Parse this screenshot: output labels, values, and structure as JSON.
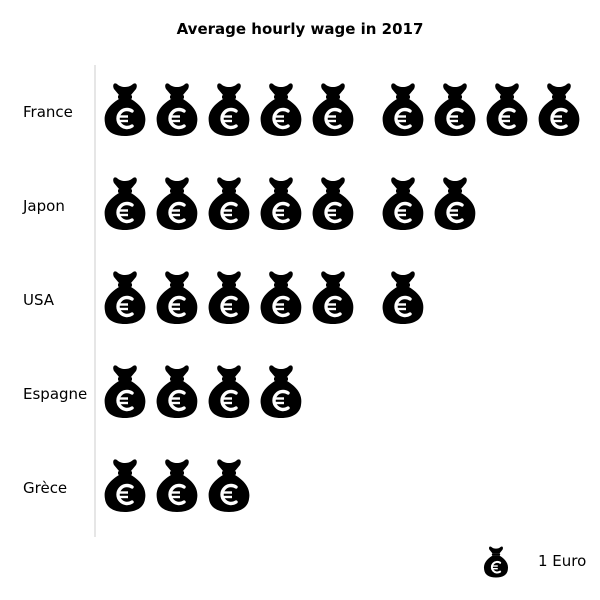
{
  "chart_data": {
    "type": "pictograph",
    "title": "Average hourly wage in 2017",
    "unit_icon": "euro-money-bag-icon",
    "icon_color": "#000000",
    "categories": [
      "France",
      "Japon",
      "USA",
      "Espagne",
      "Grèce"
    ],
    "values": [
      9,
      7,
      6,
      4,
      3
    ],
    "legend": {
      "icon": "euro-money-bag-icon",
      "label": "1 Euro",
      "placement": "bottom-right"
    }
  }
}
